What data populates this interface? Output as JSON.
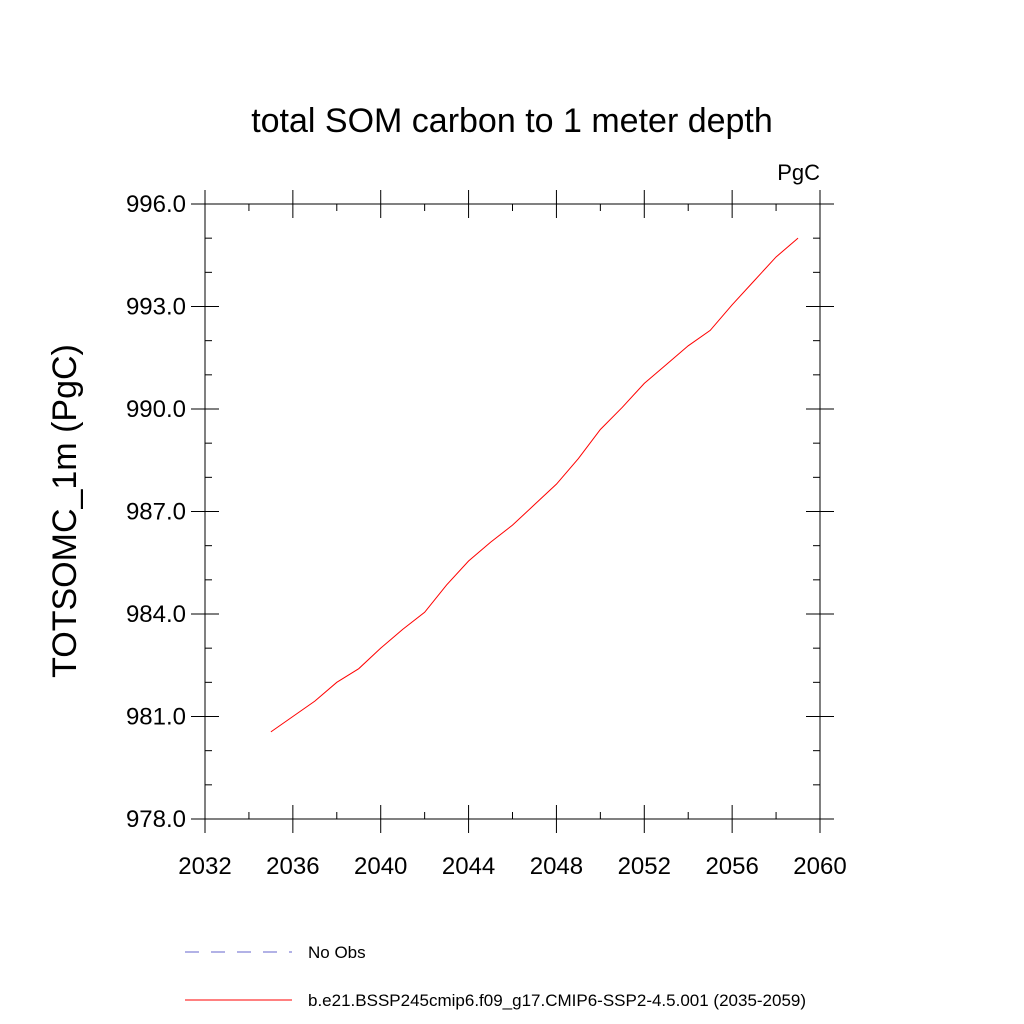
{
  "chart_data": {
    "type": "line",
    "title": "total SOM carbon to 1 meter depth",
    "units": "PgC",
    "xlabel": "",
    "ylabel": "TOTSOMC_1m  (PgC)",
    "xlim": [
      2032,
      2060
    ],
    "ylim": [
      978.0,
      996.0
    ],
    "x_ticks": [
      2032,
      2036,
      2040,
      2044,
      2048,
      2052,
      2056,
      2060
    ],
    "x_tick_labels": [
      "2032",
      "2036",
      "2040",
      "2044",
      "2048",
      "2052",
      "2056",
      "2060"
    ],
    "x_minor_ticks": [
      2034,
      2038,
      2042,
      2046,
      2050,
      2054,
      2058
    ],
    "y_ticks": [
      978.0,
      981.0,
      984.0,
      987.0,
      990.0,
      993.0,
      996.0
    ],
    "y_tick_labels": [
      "978.0",
      "981.0",
      "984.0",
      "987.0",
      "990.0",
      "993.0",
      "996.0"
    ],
    "y_minor_ticks": [
      979.0,
      980.0,
      982.0,
      983.0,
      985.0,
      986.0,
      988.0,
      989.0,
      991.0,
      992.0,
      994.0,
      995.0
    ],
    "grid": false,
    "legend_position": "bottom",
    "series": [
      {
        "name": "No Obs",
        "color": "#6666cc",
        "style": "dashed",
        "x": [],
        "values": []
      },
      {
        "name": "b.e21.BSSP245cmip6.f09_g17.CMIP6-SSP2-4.5.001 (2035-2059)",
        "color": "#ff0000",
        "style": "solid",
        "x": [
          2035,
          2036,
          2037,
          2038,
          2039,
          2040,
          2041,
          2042,
          2043,
          2044,
          2045,
          2046,
          2047,
          2048,
          2049,
          2050,
          2051,
          2052,
          2053,
          2054,
          2055,
          2056,
          2057,
          2058,
          2059
        ],
        "values": [
          980.55,
          981.0,
          981.45,
          982.0,
          982.4,
          983.0,
          983.55,
          984.05,
          984.85,
          985.55,
          986.1,
          986.6,
          987.2,
          987.8,
          988.55,
          989.4,
          990.05,
          990.75,
          991.3,
          991.85,
          992.3,
          993.05,
          993.75,
          994.45,
          995.0
        ]
      }
    ]
  }
}
